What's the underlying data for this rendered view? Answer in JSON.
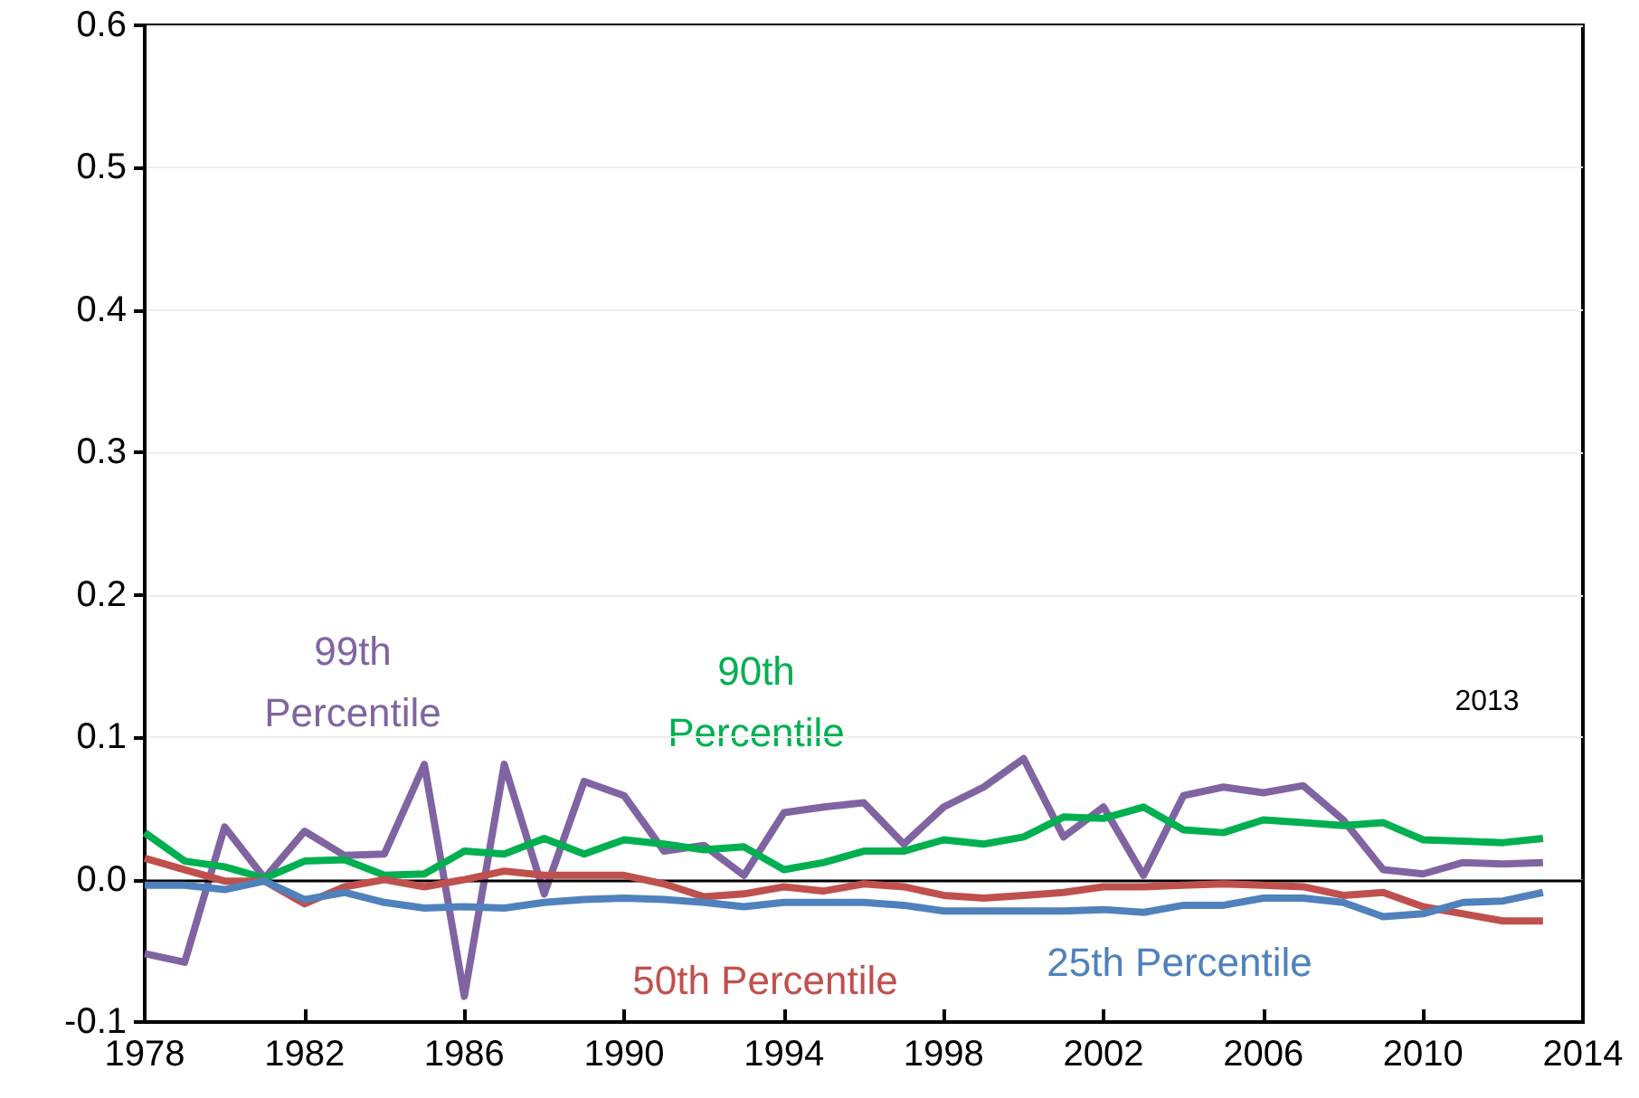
{
  "chart_data": {
    "type": "line",
    "x": [
      1978,
      1979,
      1980,
      1981,
      1982,
      1983,
      1984,
      1985,
      1986,
      1987,
      1988,
      1989,
      1990,
      1991,
      1992,
      1993,
      1994,
      1995,
      1996,
      1997,
      1998,
      1999,
      2000,
      2001,
      2002,
      2003,
      2004,
      2005,
      2006,
      2007,
      2008,
      2009,
      2010,
      2011,
      2012,
      2013
    ],
    "series": [
      {
        "name": "99th Percentile",
        "color": "#8064a2",
        "values": [
          -0.052,
          -0.058,
          0.037,
          0.001,
          0.034,
          0.017,
          0.018,
          0.081,
          -0.082,
          0.081,
          -0.01,
          0.069,
          0.059,
          0.02,
          0.024,
          0.003,
          0.047,
          0.051,
          0.054,
          0.025,
          0.051,
          0.065,
          0.085,
          0.03,
          0.051,
          0.003,
          0.059,
          0.065,
          0.061,
          0.066,
          0.042,
          0.007,
          0.004,
          0.012,
          0.011,
          0.012
        ]
      },
      {
        "name": "90th Percentile",
        "color": "#00b050",
        "values": [
          0.033,
          0.013,
          0.009,
          0.001,
          0.013,
          0.014,
          0.003,
          0.004,
          0.02,
          0.018,
          0.029,
          0.018,
          0.028,
          0.025,
          0.021,
          0.023,
          0.007,
          0.012,
          0.02,
          0.02,
          0.028,
          0.025,
          0.03,
          0.044,
          0.043,
          0.051,
          0.035,
          0.033,
          0.042,
          0.04,
          0.038,
          0.04,
          0.028,
          0.027,
          0.026,
          0.029
        ]
      },
      {
        "name": "50th Percentile",
        "color": "#c0504d",
        "values": [
          0.015,
          0.007,
          -0.001,
          -0.001,
          -0.017,
          -0.005,
          0.0,
          -0.005,
          0.0,
          0.006,
          0.003,
          0.003,
          0.003,
          -0.003,
          -0.012,
          -0.01,
          -0.005,
          -0.008,
          -0.003,
          -0.005,
          -0.011,
          -0.013,
          -0.011,
          -0.009,
          -0.005,
          -0.005,
          -0.004,
          -0.003,
          -0.004,
          -0.005,
          -0.011,
          -0.009,
          -0.019,
          -0.024,
          -0.029,
          -0.029
        ]
      },
      {
        "name": "25th Percentile",
        "color": "#4f81bd",
        "values": [
          -0.004,
          -0.004,
          -0.007,
          -0.001,
          -0.014,
          -0.009,
          -0.016,
          -0.02,
          -0.019,
          -0.02,
          -0.016,
          -0.014,
          -0.013,
          -0.014,
          -0.016,
          -0.019,
          -0.016,
          -0.016,
          -0.016,
          -0.018,
          -0.022,
          -0.022,
          -0.022,
          -0.022,
          -0.021,
          -0.023,
          -0.018,
          -0.018,
          -0.013,
          -0.013,
          -0.016,
          -0.026,
          -0.024,
          -0.016,
          -0.015,
          -0.009
        ]
      }
    ],
    "xlim": [
      1978,
      2014
    ],
    "xticks": [
      1978,
      1982,
      1986,
      1990,
      1994,
      1998,
      2002,
      2006,
      2010,
      2014
    ],
    "ylim": [
      -0.1,
      0.6
    ],
    "yticks": [
      -0.1,
      {
        "value": 0,
        "label": "0.0"
      },
      0.1,
      0.2,
      0.3,
      0.4,
      0.5,
      0.6
    ],
    "grid": "y",
    "marker": "none",
    "line_style": "solid",
    "legend": false,
    "ref_lines": [
      {
        "axis": "y",
        "value": 0,
        "color": "#000000"
      }
    ],
    "annotations": [
      "2013"
    ]
  }
}
